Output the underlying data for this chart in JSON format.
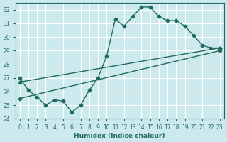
{
  "xlabel": "Humidex (Indice chaleur)",
  "bg_color": "#cce9ed",
  "grid_color": "#ffffff",
  "line_color": "#1e6b5e",
  "xlim": [
    -0.5,
    23.5
  ],
  "ylim": [
    24,
    32.5
  ],
  "xticks": [
    0,
    1,
    2,
    3,
    4,
    5,
    6,
    7,
    8,
    9,
    10,
    11,
    12,
    13,
    14,
    15,
    16,
    17,
    18,
    19,
    20,
    21,
    22,
    23
  ],
  "yticks": [
    24,
    25,
    26,
    27,
    28,
    29,
    30,
    31,
    32
  ],
  "line1_x": [
    0,
    1,
    2,
    3,
    4,
    5,
    6,
    7,
    8,
    9,
    10,
    11,
    12,
    13,
    14,
    15,
    16,
    17,
    18,
    19,
    20,
    21,
    22,
    23
  ],
  "line1_y": [
    27.0,
    26.1,
    25.6,
    25.0,
    25.4,
    25.3,
    24.5,
    25.0,
    26.1,
    27.0,
    28.6,
    31.3,
    30.8,
    31.5,
    32.2,
    32.2,
    31.5,
    31.2,
    31.2,
    30.8,
    30.1,
    29.4,
    29.2,
    29.2
  ],
  "line2_x": [
    0,
    23
  ],
  "line2_y": [
    26.7,
    29.2
  ],
  "line3_x": [
    0,
    23
  ],
  "line3_y": [
    25.5,
    29.0
  ],
  "marker": "D",
  "marker_size": 2.5,
  "line_width": 1.0
}
